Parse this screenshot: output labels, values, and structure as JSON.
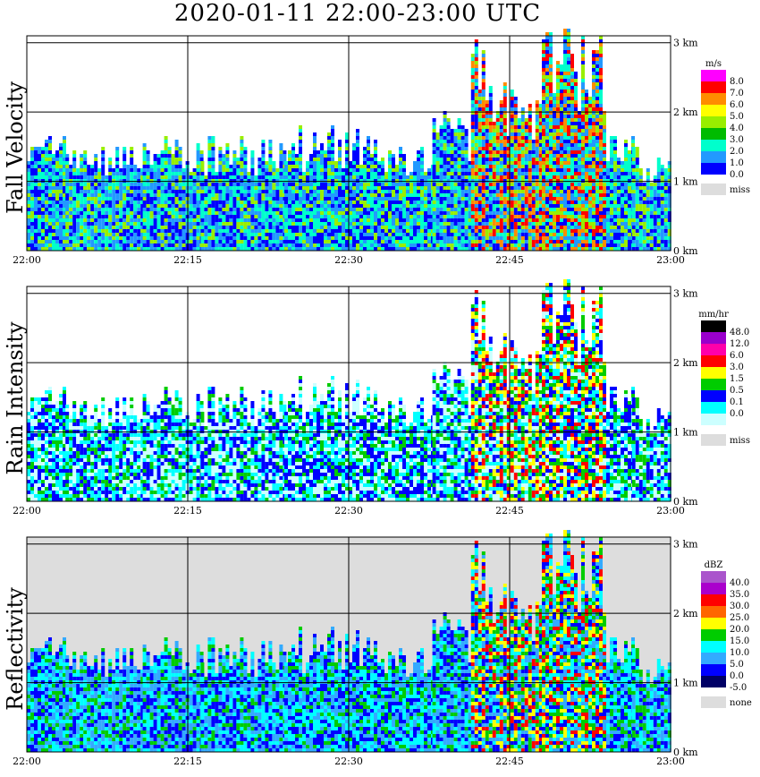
{
  "title": "2020-01-11   22:00-23:00 UTC",
  "colors": {
    "missing": "#dddddd",
    "grid": "#000000"
  },
  "chart_data": [
    {
      "type": "heatmap",
      "ylabel": "Fall Velocity",
      "xlabel": "",
      "x_ticks": [
        "22:00",
        "22:15",
        "22:30",
        "22:45",
        "23:00"
      ],
      "y_ticks": [
        "0 km",
        "1 km",
        "2 km",
        "3 km"
      ],
      "xlim": [
        "22:00",
        "23:00"
      ],
      "ylim_km": [
        0,
        3.1
      ],
      "grid": true,
      "legend_position": "right",
      "colorbar": {
        "unit": "m/s",
        "labels": [
          "8.0",
          "7.0",
          "6.0",
          "5.0",
          "4.0",
          "3.0",
          "2.0",
          "1.0",
          "0.0"
        ],
        "colors": [
          "#ff00ff",
          "#ff0000",
          "#ff8c00",
          "#ffff00",
          "#99ee00",
          "#00bb00",
          "#00ffcc",
          "#2299ff",
          "#0000ff"
        ],
        "missing_label": "miss"
      }
    },
    {
      "type": "heatmap",
      "ylabel": "Rain Intensity",
      "xlabel": "",
      "x_ticks": [
        "22:00",
        "22:15",
        "22:30",
        "22:45",
        "23:00"
      ],
      "y_ticks": [
        "0 km",
        "1 km",
        "2 km",
        "3 km"
      ],
      "xlim": [
        "22:00",
        "23:00"
      ],
      "ylim_km": [
        0,
        3.1
      ],
      "grid": true,
      "legend_position": "right",
      "colorbar": {
        "unit": "mm/hr",
        "labels": [
          "48.0",
          "12.0",
          "6.0",
          "3.0",
          "1.5",
          "0.5",
          "0.1",
          "0.0"
        ],
        "colors": [
          "#000000",
          "#9900cc",
          "#ff00aa",
          "#ff0000",
          "#ffff00",
          "#00cc00",
          "#0000ff",
          "#00ffff",
          "#ccffff"
        ],
        "missing_label": "miss"
      }
    },
    {
      "type": "heatmap",
      "ylabel": "Reflectivity",
      "xlabel": "",
      "x_ticks": [
        "22:00",
        "22:15",
        "22:30",
        "22:45",
        "23:00"
      ],
      "y_ticks": [
        "0 km",
        "1 km",
        "2 km",
        "3 km"
      ],
      "xlim": [
        "22:00",
        "23:00"
      ],
      "ylim_km": [
        0,
        3.1
      ],
      "grid": true,
      "legend_position": "right",
      "colorbar": {
        "unit": "dBZ",
        "labels": [
          "40.0",
          "35.0",
          "30.0",
          "25.0",
          "20.0",
          "15.0",
          "10.0",
          "5.0",
          "0.0",
          "-5.0"
        ],
        "colors": [
          "#aa55cc",
          "#aa00cc",
          "#ff0000",
          "#ff6600",
          "#ffff00",
          "#00cc00",
          "#00ffff",
          "#33aaff",
          "#0000ff",
          "#000066"
        ],
        "missing_label": "none"
      }
    }
  ]
}
